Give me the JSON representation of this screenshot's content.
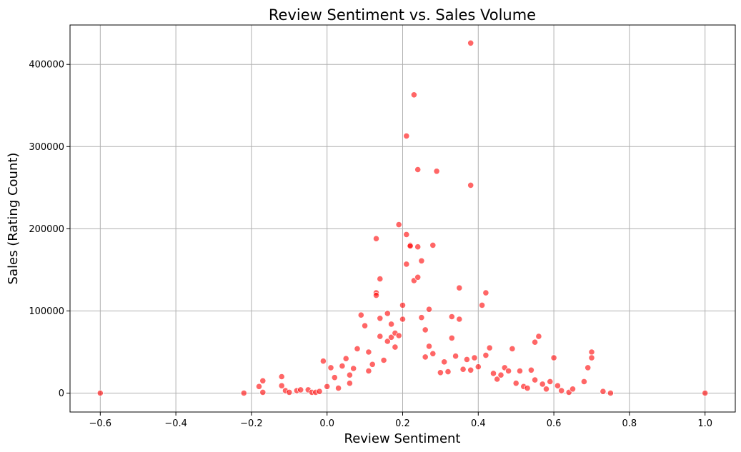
{
  "chart_data": {
    "type": "scatter",
    "title": "Review Sentiment vs. Sales Volume",
    "xlabel": "Review Sentiment",
    "ylabel": "Sales (Rating Count)",
    "xlim": [
      -0.68,
      1.08
    ],
    "ylim": [
      -23000,
      448000
    ],
    "xticks": [
      -0.6,
      -0.4,
      -0.2,
      0.0,
      0.2,
      0.4,
      0.6,
      0.8,
      1.0
    ],
    "xtick_labels": [
      "−0.6",
      "−0.4",
      "−0.2",
      "0.0",
      "0.2",
      "0.4",
      "0.6",
      "0.8",
      "1.0"
    ],
    "yticks": [
      0,
      100000,
      200000,
      300000,
      400000
    ],
    "ytick_labels": [
      "0",
      "100000",
      "200000",
      "300000",
      "400000"
    ],
    "grid": true,
    "point_color": "#ff0000",
    "point_alpha": 0.6,
    "x": [
      -0.6,
      -0.22,
      -0.18,
      -0.17,
      -0.17,
      -0.12,
      -0.12,
      -0.11,
      -0.1,
      -0.08,
      -0.07,
      -0.05,
      -0.04,
      -0.03,
      -0.02,
      -0.01,
      0.0,
      0.01,
      0.02,
      0.03,
      0.04,
      0.05,
      0.06,
      0.06,
      0.07,
      0.08,
      0.09,
      0.1,
      0.11,
      0.11,
      0.12,
      0.13,
      0.13,
      0.13,
      0.14,
      0.14,
      0.14,
      0.15,
      0.16,
      0.16,
      0.17,
      0.17,
      0.18,
      0.18,
      0.19,
      0.19,
      0.2,
      0.2,
      0.21,
      0.21,
      0.21,
      0.22,
      0.22,
      0.23,
      0.23,
      0.24,
      0.24,
      0.24,
      0.25,
      0.25,
      0.26,
      0.26,
      0.27,
      0.27,
      0.28,
      0.28,
      0.29,
      0.3,
      0.31,
      0.32,
      0.33,
      0.33,
      0.34,
      0.35,
      0.35,
      0.36,
      0.37,
      0.38,
      0.38,
      0.38,
      0.39,
      0.4,
      0.41,
      0.42,
      0.42,
      0.43,
      0.44,
      0.45,
      0.46,
      0.47,
      0.48,
      0.49,
      0.5,
      0.51,
      0.52,
      0.53,
      0.54,
      0.55,
      0.55,
      0.56,
      0.57,
      0.58,
      0.59,
      0.6,
      0.61,
      0.62,
      0.64,
      0.65,
      0.68,
      0.69,
      0.7,
      0.7,
      0.73,
      0.75,
      1.0
    ],
    "y": [
      0,
      0,
      8000,
      15000,
      1000,
      20000,
      9000,
      3000,
      1000,
      3000,
      4000,
      4000,
      1000,
      1000,
      2000,
      39000,
      8000,
      31000,
      19000,
      6000,
      33000,
      42000,
      12000,
      22000,
      30000,
      54000,
      95000,
      82000,
      50000,
      27000,
      35000,
      188000,
      122000,
      119000,
      139000,
      69000,
      91000,
      40000,
      97000,
      63000,
      84000,
      68000,
      56000,
      73000,
      70000,
      205000,
      107000,
      90000,
      313000,
      193000,
      157000,
      180000,
      179000,
      137000,
      363000,
      272000,
      178000,
      141000,
      92000,
      161000,
      44000,
      77000,
      57000,
      102000,
      180000,
      48000,
      270000,
      25000,
      38000,
      26000,
      93000,
      67000,
      45000,
      128000,
      90000,
      29000,
      41000,
      426000,
      253000,
      28000,
      43000,
      32000,
      107000,
      122000,
      46000,
      55000,
      24000,
      17000,
      22000,
      31000,
      27000,
      54000,
      12000,
      27000,
      8000,
      6000,
      28000,
      62000,
      16000,
      69000,
      11000,
      5000,
      14000,
      43000,
      9000,
      3000,
      1000,
      5000,
      14000,
      31000,
      50000,
      43000,
      2000,
      0,
      0
    ]
  }
}
